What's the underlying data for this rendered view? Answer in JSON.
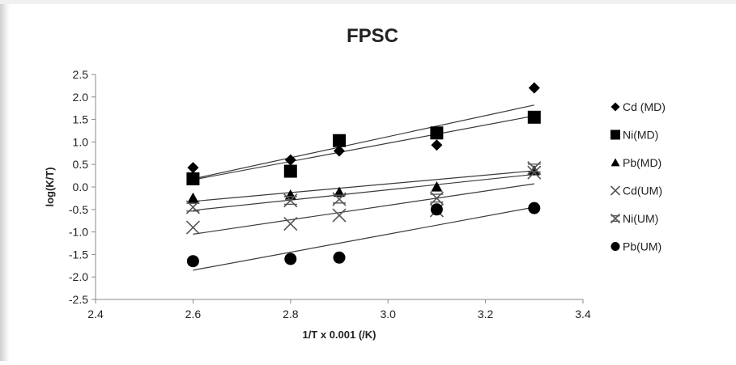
{
  "chart_data": {
    "type": "scatter",
    "title": "FPSC",
    "xlabel": "1/T x 0.001 (/K)",
    "ylabel": "log(K/T)",
    "xlim": [
      2.4,
      3.4
    ],
    "ylim": [
      -2.5,
      2.5
    ],
    "x_ticks": [
      "2.4",
      "2.6",
      "2.8",
      "3.0",
      "3.2",
      "3.4"
    ],
    "y_ticks": [
      "2.5",
      "2.0",
      "1.5",
      "1.0",
      "0.5",
      "0.0",
      "-0.5",
      "-1.0",
      "-1.5",
      "-2.0",
      "-2.5"
    ],
    "x_tick_values": [
      2.4,
      2.6,
      2.8,
      3.0,
      3.2,
      3.4
    ],
    "y_tick_values": [
      2.5,
      2.0,
      1.5,
      1.0,
      0.5,
      0.0,
      -0.5,
      -1.0,
      -1.5,
      -2.0,
      -2.5
    ],
    "grid": false,
    "legend_position": "right",
    "trendlines": true,
    "series": [
      {
        "name": "Cd (MD)",
        "marker": "diamond",
        "color": "#000000",
        "points": [
          [
            2.6,
            0.43
          ],
          [
            2.8,
            0.6
          ],
          [
            2.9,
            0.8
          ],
          [
            3.1,
            0.93
          ],
          [
            3.3,
            2.2
          ]
        ],
        "trend": [
          [
            2.6,
            0.18
          ],
          [
            3.3,
            1.82
          ]
        ]
      },
      {
        "name": "Ni(MD)",
        "marker": "square",
        "color": "#000000",
        "points": [
          [
            2.6,
            0.18
          ],
          [
            2.8,
            0.35
          ],
          [
            2.9,
            1.03
          ],
          [
            3.1,
            1.2
          ],
          [
            3.3,
            1.55
          ]
        ],
        "trend": [
          [
            2.6,
            0.16
          ],
          [
            3.3,
            1.58
          ]
        ]
      },
      {
        "name": "Pb(MD)",
        "marker": "triangle",
        "color": "#000000",
        "points": [
          [
            2.6,
            -0.25
          ],
          [
            2.8,
            -0.18
          ],
          [
            2.9,
            -0.12
          ],
          [
            3.1,
            0.0
          ],
          [
            3.3,
            0.36
          ]
        ],
        "trend": [
          [
            2.6,
            -0.32
          ],
          [
            3.3,
            0.36
          ]
        ]
      },
      {
        "name": "Cd(UM)",
        "marker": "x",
        "color": "#555555",
        "points": [
          [
            2.6,
            -0.9
          ],
          [
            2.8,
            -0.82
          ],
          [
            2.9,
            -0.63
          ],
          [
            3.1,
            -0.52
          ],
          [
            3.3,
            0.32
          ]
        ],
        "trend": [
          [
            2.6,
            -1.05
          ],
          [
            3.3,
            0.07
          ]
        ]
      },
      {
        "name": "Ni(UM)",
        "marker": "asterisk",
        "color": "#555555",
        "points": [
          [
            2.6,
            -0.45
          ],
          [
            2.8,
            -0.3
          ],
          [
            2.9,
            -0.27
          ],
          [
            3.1,
            -0.25
          ],
          [
            3.3,
            0.42
          ]
        ],
        "trend": [
          [
            2.6,
            -0.52
          ],
          [
            3.3,
            0.28
          ]
        ]
      },
      {
        "name": "Pb(UM)",
        "marker": "circle",
        "color": "#000000",
        "points": [
          [
            2.6,
            -1.65
          ],
          [
            2.8,
            -1.6
          ],
          [
            2.9,
            -1.57
          ],
          [
            3.1,
            -0.5
          ],
          [
            3.3,
            -0.47
          ]
        ],
        "trend": [
          [
            2.6,
            -1.85
          ],
          [
            3.3,
            -0.45
          ]
        ]
      }
    ]
  }
}
